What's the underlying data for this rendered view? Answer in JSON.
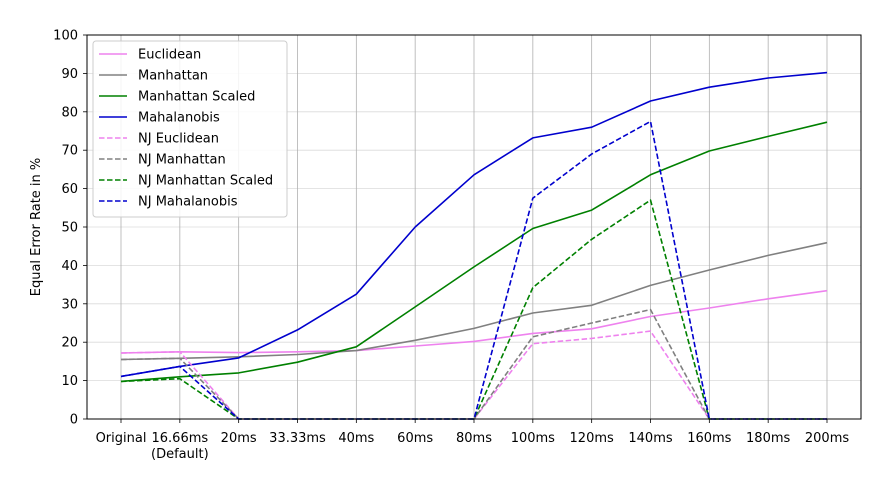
{
  "chart_data": {
    "type": "line",
    "title": "",
    "xlabel": "",
    "ylabel": "Equal Error Rate in %",
    "ylim": [
      0,
      100
    ],
    "yticks": [
      "0",
      "10",
      "20",
      "30",
      "40",
      "50",
      "60",
      "70",
      "80",
      "90",
      "100"
    ],
    "categories": [
      [
        "Original"
      ],
      [
        "16.66ms",
        "(Default)"
      ],
      [
        "20ms"
      ],
      [
        "33.33ms"
      ],
      [
        "40ms"
      ],
      [
        "60ms"
      ],
      [
        "80ms"
      ],
      [
        "100ms"
      ],
      [
        "120ms"
      ],
      [
        "140ms"
      ],
      [
        "160ms"
      ],
      [
        "180ms"
      ],
      [
        "200ms"
      ]
    ],
    "grid": true,
    "legend_position": "top-left",
    "series": [
      {
        "name": "Euclidean",
        "color": "#ee82ee",
        "dash": false,
        "values": [
          17.2,
          17.5,
          17.3,
          17.5,
          17.8,
          19.0,
          20.2,
          22.3,
          23.5,
          26.7,
          28.9,
          31.3,
          33.4
        ]
      },
      {
        "name": "Manhattan",
        "color": "#808080",
        "dash": false,
        "values": [
          15.5,
          15.8,
          16.2,
          16.8,
          17.8,
          20.5,
          23.6,
          27.6,
          29.6,
          34.8,
          38.8,
          42.6,
          45.9
        ]
      },
      {
        "name": "Manhattan Scaled",
        "color": "#008000",
        "dash": false,
        "values": [
          9.8,
          11.0,
          12.0,
          14.8,
          18.8,
          29.2,
          39.6,
          49.6,
          54.4,
          63.6,
          69.8,
          73.6,
          77.3
        ]
      },
      {
        "name": "Mahalanobis",
        "color": "#0000cd",
        "dash": false,
        "values": [
          11.1,
          13.7,
          15.9,
          23.2,
          32.5,
          50.0,
          63.6,
          73.2,
          76.0,
          82.8,
          86.4,
          88.8,
          90.2
        ]
      },
      {
        "name": "NJ Euclidean",
        "color": "#ee82ee",
        "dash": true,
        "values": [
          17.2,
          17.5,
          0,
          0,
          0,
          0,
          0,
          19.6,
          21.0,
          22.9,
          0,
          0,
          0
        ]
      },
      {
        "name": "NJ Manhattan",
        "color": "#808080",
        "dash": true,
        "values": [
          15.5,
          15.8,
          0,
          0,
          0,
          0,
          0,
          21.4,
          25.0,
          28.5,
          0,
          0,
          0
        ]
      },
      {
        "name": "NJ Manhattan Scaled",
        "color": "#008000",
        "dash": true,
        "values": [
          9.8,
          10.5,
          0,
          0,
          0,
          0,
          0,
          34.2,
          46.8,
          57.0,
          0,
          0,
          0
        ]
      },
      {
        "name": "NJ Mahalanobis",
        "color": "#0000cd",
        "dash": true,
        "values": [
          11.1,
          13.7,
          0,
          0,
          0,
          0,
          0,
          57.5,
          69.0,
          77.5,
          0,
          0,
          0
        ]
      }
    ]
  }
}
